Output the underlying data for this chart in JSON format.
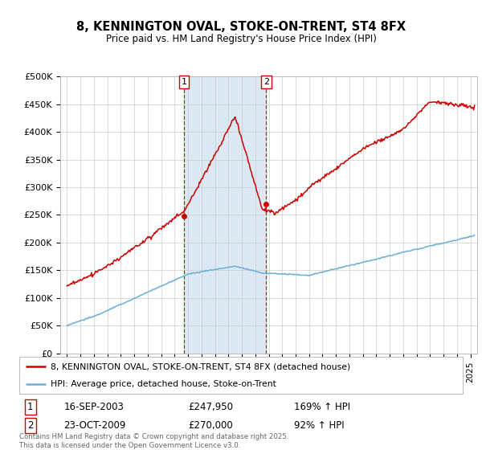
{
  "title": "8, KENNINGTON OVAL, STOKE-ON-TRENT, ST4 8FX",
  "subtitle": "Price paid vs. HM Land Registry's House Price Index (HPI)",
  "ylabel_ticks": [
    "£0",
    "£50K",
    "£100K",
    "£150K",
    "£200K",
    "£250K",
    "£300K",
    "£350K",
    "£400K",
    "£450K",
    "£500K"
  ],
  "ytick_values": [
    0,
    50000,
    100000,
    150000,
    200000,
    250000,
    300000,
    350000,
    400000,
    450000,
    500000
  ],
  "xlim": [
    1994.5,
    2025.5
  ],
  "ylim": [
    0,
    500000
  ],
  "sale1": {
    "date_num": 2003.71,
    "price": 247950,
    "label": "1"
  },
  "sale2": {
    "date_num": 2009.81,
    "price": 270000,
    "label": "2"
  },
  "legend_entries": [
    "8, KENNINGTON OVAL, STOKE-ON-TRENT, ST4 8FX (detached house)",
    "HPI: Average price, detached house, Stoke-on-Trent"
  ],
  "table_rows": [
    {
      "num": "1",
      "date": "16-SEP-2003",
      "price": "£247,950",
      "hpi": "169% ↑ HPI"
    },
    {
      "num": "2",
      "date": "23-OCT-2009",
      "price": "£270,000",
      "hpi": "92% ↑ HPI"
    }
  ],
  "footnote": "Contains HM Land Registry data © Crown copyright and database right 2025.\nThis data is licensed under the Open Government Licence v3.0.",
  "hpi_color": "#6baed6",
  "sold_color": "#cc0000",
  "shade_color": "#dce9f5",
  "vline_color": "#cc0000",
  "background_color": "#ffffff",
  "grid_color": "#cccccc"
}
